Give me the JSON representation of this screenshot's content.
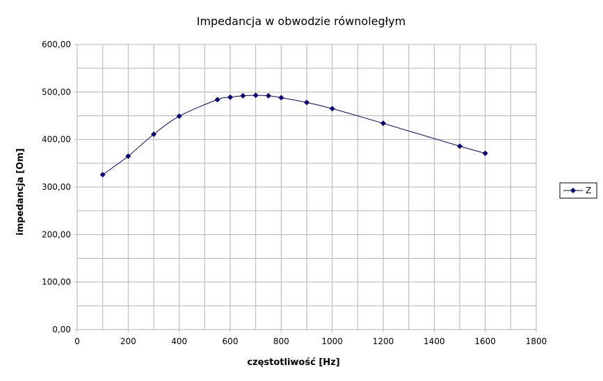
{
  "chart_data": {
    "type": "line",
    "title": "Impedancja w obwodzie równoległym",
    "xlabel": "częstotliwość [Hz]",
    "ylabel": "impedancja [Om]",
    "xlim": [
      0,
      1800
    ],
    "ylim": [
      0,
      600
    ],
    "x_ticks": [
      0,
      200,
      400,
      600,
      800,
      1000,
      1200,
      1400,
      1600,
      1800
    ],
    "x_tick_labels": [
      "0",
      "200",
      "400",
      "600",
      "800",
      "1000",
      "1200",
      "1400",
      "1600",
      "1800"
    ],
    "y_ticks": [
      0,
      100,
      200,
      300,
      400,
      500,
      600
    ],
    "y_tick_labels": [
      "0,00",
      "100,00",
      "200,00",
      "300,00",
      "400,00",
      "500,00",
      "600,00"
    ],
    "grid": true,
    "legend_position": "right",
    "series": [
      {
        "name": "Z",
        "color": "#000080",
        "marker": "diamond",
        "smooth": true,
        "x": [
          100,
          200,
          300,
          400,
          550,
          600,
          650,
          700,
          750,
          800,
          900,
          1000,
          1200,
          1500,
          1600
        ],
        "y": [
          326,
          365,
          411,
          449,
          484,
          489,
          492,
          493,
          492,
          488,
          478,
          465,
          434,
          386,
          371
        ]
      }
    ]
  }
}
